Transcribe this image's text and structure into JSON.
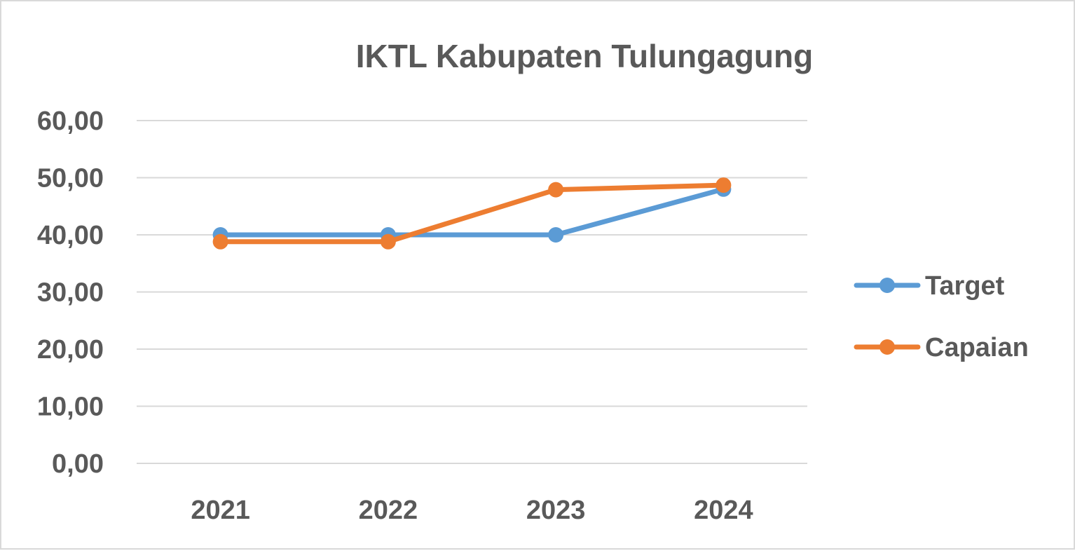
{
  "chart_data": {
    "type": "line",
    "title": "IKTL Kabupaten Tulungagung",
    "xlabel": "",
    "ylabel": "",
    "categories": [
      "2021",
      "2022",
      "2023",
      "2024"
    ],
    "ylim": [
      0,
      60
    ],
    "y_ticks": [
      "0,00",
      "10,00",
      "20,00",
      "30,00",
      "40,00",
      "50,00",
      "60,00"
    ],
    "y_tick_values": [
      0,
      10,
      20,
      30,
      40,
      50,
      60
    ],
    "grid": true,
    "legend_position": "right",
    "series": [
      {
        "name": "Target",
        "values": [
          40.0,
          40.0,
          40.0,
          48.0
        ],
        "color": "#5b9bd5"
      },
      {
        "name": "Capaian",
        "values": [
          38.8,
          38.8,
          47.9,
          48.7
        ],
        "color": "#ed7d31"
      }
    ]
  }
}
